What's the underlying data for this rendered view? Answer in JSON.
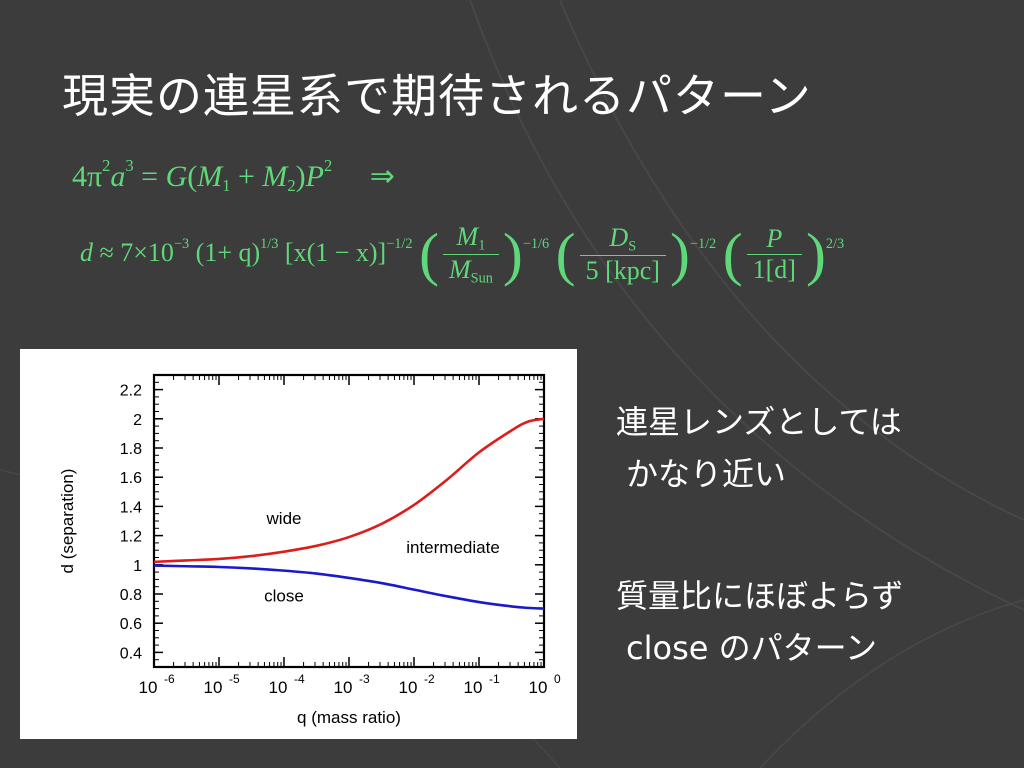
{
  "slide": {
    "title": "現実の連星系で期待されるパターン"
  },
  "equations": {
    "kepler": {
      "lhs": "4π",
      "rhs_const": "G",
      "m1": "M",
      "m2": "M",
      "period": "P",
      "implies": "⇒"
    },
    "separation": {
      "d": "d",
      "approx": "≈ 7×10",
      "exp_coeff": "−3",
      "q_term": "(1+ q)",
      "q_exp": "1/3",
      "x_term": "[x(1 − x)]",
      "x_exp": "−1/2",
      "m_num": "M",
      "m_num_sub": "1",
      "m_den": "M",
      "m_den_sub": "Sun",
      "m_exp": "−1/6",
      "ds_num": "D",
      "ds_num_sub": "S",
      "ds_den": "5 [kpc]",
      "ds_exp": "−1/2",
      "p_num": "P",
      "p_den": "1[d]",
      "p_exp": "2/3"
    }
  },
  "bullets": {
    "note1_line1": "連星レンズとしては",
    "note1_line2": "かなり近い",
    "note2_line1": "質量比にほぼよらず",
    "note2_line2": "close のパターン"
  },
  "colors": {
    "background": "#3c3c3c",
    "equation": "#5fd87a",
    "wide_curve": "#dd1c1c",
    "close_curve": "#1a1acc"
  },
  "chart_data": {
    "type": "line",
    "xlabel": "q (mass ratio)",
    "ylabel": "d (separation)",
    "xscale": "log",
    "xlim": [
      -6,
      0
    ],
    "ylim": [
      0.3,
      2.3
    ],
    "x_ticks": [
      {
        "base": "10",
        "exp": "-6",
        "v": -6
      },
      {
        "base": "10",
        "exp": "-5",
        "v": -5
      },
      {
        "base": "10",
        "exp": "-4",
        "v": -4
      },
      {
        "base": "10",
        "exp": "-3",
        "v": -3
      },
      {
        "base": "10",
        "exp": "-2",
        "v": -2
      },
      {
        "base": "10",
        "exp": "-1",
        "v": -1
      },
      {
        "base": "10",
        "exp": "0",
        "v": 0
      }
    ],
    "y_ticks": [
      {
        "label": "0.4",
        "v": 0.4
      },
      {
        "label": "0.6",
        "v": 0.6
      },
      {
        "label": "0.8",
        "v": 0.8
      },
      {
        "label": "1",
        "v": 1.0
      },
      {
        "label": "1.2",
        "v": 1.2
      },
      {
        "label": "1.4",
        "v": 1.4
      },
      {
        "label": "1.6",
        "v": 1.6
      },
      {
        "label": "1.8",
        "v": 1.8
      },
      {
        "label": "2",
        "v": 2.0
      },
      {
        "label": "2.2",
        "v": 2.2
      }
    ],
    "region_labels": {
      "wide": "wide",
      "intermediate": "intermediate",
      "close": "close"
    },
    "series": [
      {
        "color": "#dd1c1c",
        "log_q": [
          -6,
          -5.5,
          -5,
          -4.5,
          -4,
          -3.5,
          -3,
          -2.5,
          -2,
          -1.5,
          -1,
          -0.5,
          -0.25,
          0
        ],
        "d": [
          1.02,
          1.03,
          1.04,
          1.06,
          1.09,
          1.13,
          1.19,
          1.28,
          1.41,
          1.58,
          1.77,
          1.92,
          1.98,
          2.0
        ]
      },
      {
        "color": "#1a1acc",
        "log_q": [
          -6,
          -5.5,
          -5,
          -4.5,
          -4,
          -3.5,
          -3,
          -2.5,
          -2,
          -1.5,
          -1,
          -0.5,
          -0.25,
          0
        ],
        "d": [
          0.995,
          0.99,
          0.985,
          0.975,
          0.96,
          0.94,
          0.91,
          0.875,
          0.83,
          0.785,
          0.745,
          0.715,
          0.705,
          0.7
        ]
      }
    ]
  }
}
